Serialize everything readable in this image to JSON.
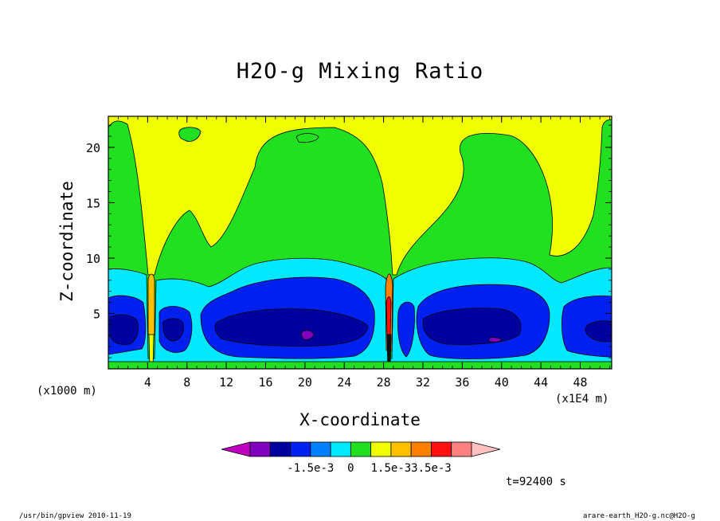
{
  "chart_data": {
    "type": "heatmap",
    "title": "H2O-g Mixing Ratio",
    "xlabel": "X-coordinate",
    "ylabel": "Z-coordinate",
    "x_ticks": [
      "4",
      "8",
      "12",
      "16",
      "20",
      "24",
      "28",
      "32",
      "36",
      "40",
      "44",
      "48"
    ],
    "x_range": [
      0,
      51.2
    ],
    "y_ticks": [
      "5",
      "10",
      "15",
      "20"
    ],
    "y_range": [
      0,
      22.8
    ],
    "x_unit": "(x1E4 m)",
    "y_unit": "(x1000 m)",
    "time": "t=92400 s",
    "colorbar": {
      "labels": [
        "-1.5e-3",
        "0",
        "1.5e-3",
        "3.5e-3"
      ],
      "colors": [
        "#c000c0",
        "#8000c0",
        "#0000a0",
        "#0020f0",
        "#0080ff",
        "#00e8ff",
        "#20e020",
        "#f0ff00",
        "#ffc000",
        "#ff8000",
        "#ff1010",
        "#ff8080",
        "#ffc0c0"
      ]
    },
    "colors": {
      "bottom_green": "#20e020",
      "cyan": "#00e8ff",
      "blue": "#0020f0",
      "dark_blue": "#0000a0",
      "purple": "#8000c0",
      "green": "#20e020",
      "yellow": "#f0ff00"
    }
  },
  "footer": {
    "left": "/usr/bin/gpview  2010-11-19",
    "right": "arare-earth_H2O-g.nc@H2O-g"
  }
}
